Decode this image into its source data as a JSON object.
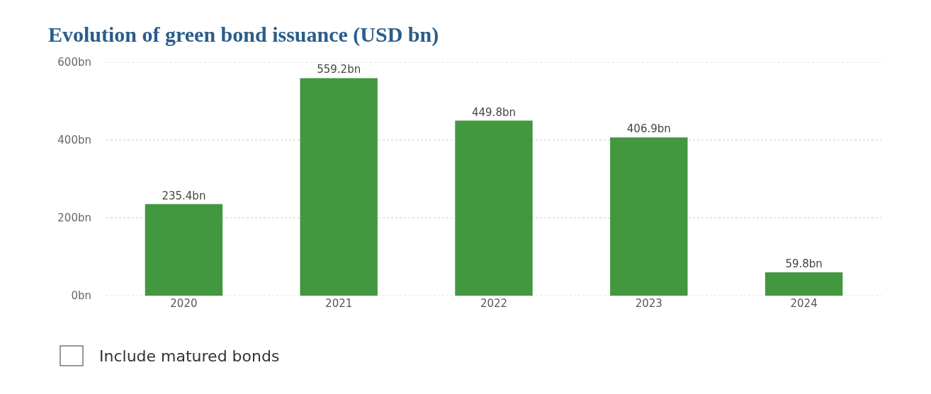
{
  "chart_data": {
    "type": "bar",
    "title": "Evolution of green bond issuance (USD bn)",
    "categories": [
      "2020",
      "2021",
      "2022",
      "2023",
      "2024"
    ],
    "values": [
      235.4,
      559.2,
      449.8,
      406.9,
      59.8
    ],
    "value_labels": [
      "235.4bn",
      "559.2bn",
      "449.8bn",
      "406.9bn",
      "59.8bn"
    ],
    "color": "#43973f",
    "ylim": [
      0,
      600
    ],
    "yticks": [
      {
        "value": 0,
        "label": "0bn"
      },
      {
        "value": 200,
        "label": "200bn"
      },
      {
        "value": 400,
        "label": "400bn"
      },
      {
        "value": 600,
        "label": "600bn"
      }
    ],
    "grid": "y",
    "annotations": [
      "Include matured bonds"
    ]
  }
}
